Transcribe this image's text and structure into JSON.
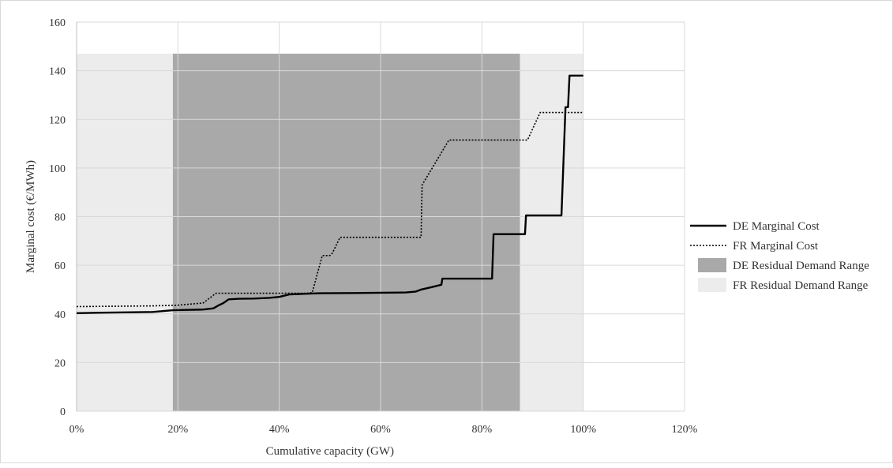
{
  "chart_data": {
    "type": "line",
    "title": "",
    "xlabel": "Cumulative capacity (GW)",
    "ylabel": "Marginal cost (€/MWh)",
    "xlim": [
      0,
      120
    ],
    "ylim": [
      0,
      160
    ],
    "x_ticks": [
      0,
      20,
      40,
      60,
      80,
      100,
      120
    ],
    "x_tick_labels": [
      "0%",
      "20%",
      "40%",
      "60%",
      "80%",
      "100%",
      "120%"
    ],
    "y_ticks": [
      0,
      20,
      40,
      60,
      80,
      100,
      120,
      140,
      160
    ],
    "y_tick_labels": [
      "0",
      "20",
      "40",
      "60",
      "80",
      "100",
      "120",
      "140",
      "160"
    ],
    "grid": true,
    "legend_position": "right",
    "series": [
      {
        "name": "DE Marginal Cost",
        "style": "solid",
        "color": "#000000",
        "points": [
          [
            0,
            40.3
          ],
          [
            5,
            40.5
          ],
          [
            15,
            40.8
          ],
          [
            19,
            41.5
          ],
          [
            25,
            41.8
          ],
          [
            27,
            42.3
          ],
          [
            28,
            43.5
          ],
          [
            29,
            44.5
          ],
          [
            30,
            46
          ],
          [
            32,
            46.2
          ],
          [
            35,
            46.3
          ],
          [
            38,
            46.6
          ],
          [
            40,
            47
          ],
          [
            42,
            48
          ],
          [
            44,
            48.2
          ],
          [
            48,
            48.5
          ],
          [
            55,
            48.6
          ],
          [
            60,
            48.7
          ],
          [
            65,
            48.8
          ],
          [
            67,
            49.2
          ],
          [
            68,
            50
          ],
          [
            70,
            51
          ],
          [
            72,
            52
          ],
          [
            72.2,
            54.5
          ],
          [
            82,
            54.5
          ],
          [
            82.3,
            72.8
          ],
          [
            88.5,
            72.8
          ],
          [
            88.7,
            80.5
          ],
          [
            95.7,
            80.5
          ],
          [
            96.5,
            125
          ],
          [
            97,
            125
          ],
          [
            97.3,
            138
          ],
          [
            100,
            138
          ]
        ]
      },
      {
        "name": "FR Marginal Cost",
        "style": "dotted",
        "color": "#000000",
        "points": [
          [
            0,
            43
          ],
          [
            15,
            43.3
          ],
          [
            20,
            43.6
          ],
          [
            25,
            44.5
          ],
          [
            27.5,
            48.5
          ],
          [
            45,
            48.5
          ],
          [
            46.5,
            48.7
          ],
          [
            48.5,
            64
          ],
          [
            50,
            64
          ],
          [
            50.5,
            65
          ],
          [
            52,
            71.5
          ],
          [
            68,
            71.5
          ],
          [
            68.2,
            93
          ],
          [
            73.5,
            111.5
          ],
          [
            89,
            111.5
          ],
          [
            91.5,
            122.8
          ],
          [
            100,
            122.8
          ]
        ]
      }
    ],
    "ranges": [
      {
        "name": "FR Residual Demand Range",
        "x_start": 0,
        "x_end": 100,
        "y_top": 147,
        "color": "#ececec"
      },
      {
        "name": "DE Residual Demand Range",
        "x_start": 19,
        "x_end": 87.5,
        "y_top": 147,
        "color": "#a9a9a9"
      }
    ]
  }
}
